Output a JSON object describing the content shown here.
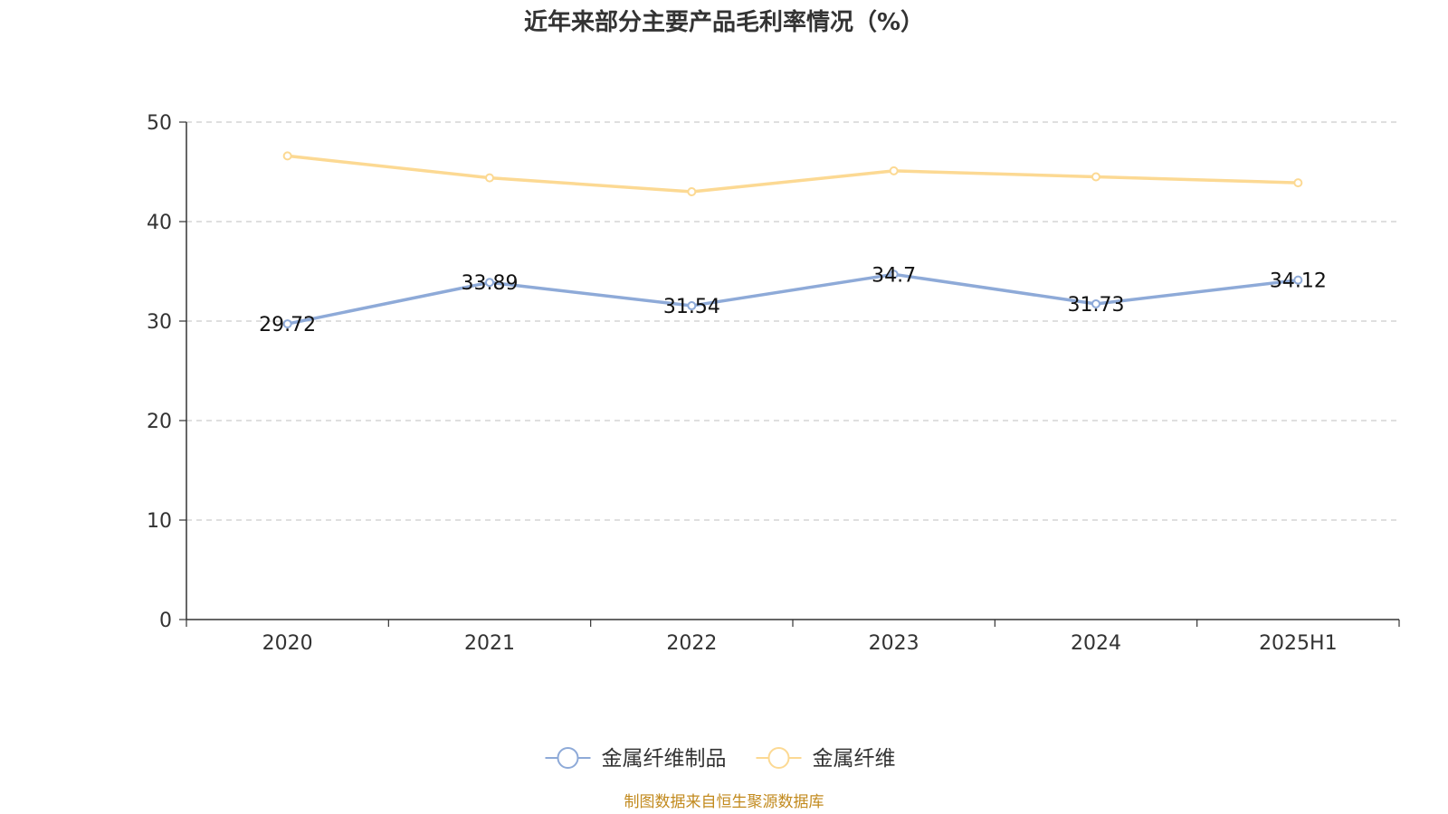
{
  "chart_data": {
    "type": "line",
    "title": "近年来部分主要产品毛利率情况（%）",
    "categories": [
      "2020",
      "2021",
      "2022",
      "2023",
      "2024",
      "2025H1"
    ],
    "ylim": [
      0,
      50
    ],
    "yticks": [
      0,
      10,
      20,
      30,
      40,
      50
    ],
    "grid": true,
    "legend_position": "bottom",
    "series": [
      {
        "name": "金属纤维制品",
        "color": "#8eaad8",
        "values": [
          29.72,
          33.89,
          31.54,
          34.7,
          31.73,
          34.12
        ],
        "labels": [
          "29.72",
          "33.89",
          "31.54",
          "34.7",
          "31.73",
          "34.12"
        ],
        "show_labels": true
      },
      {
        "name": "金属纤维",
        "color": "#fcd993",
        "values": [
          46.6,
          44.4,
          43.0,
          45.1,
          44.5,
          43.9
        ],
        "show_labels": false
      }
    ],
    "source": "制图数据来自恒生聚源数据库"
  }
}
